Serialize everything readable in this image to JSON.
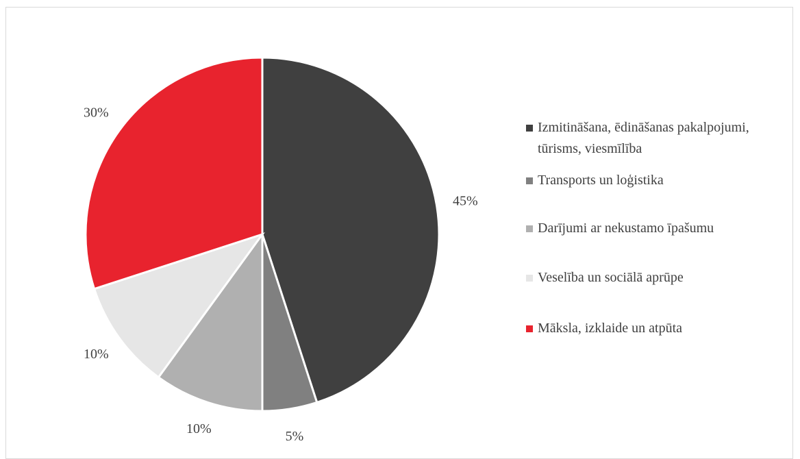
{
  "chart_data": {
    "type": "pie",
    "categories": [
      "Izmitināšana, ēdināšanas pakalpojumi, tūrisms, viesmīlība",
      "Transports un loģistika",
      "Darījumi ar nekustamo īpašumu",
      "Veselība un sociālā aprūpe",
      "Māksla, izklaide un atpūta"
    ],
    "values": [
      45,
      5,
      10,
      10,
      30
    ],
    "value_labels": [
      "45%",
      "5%",
      "10%",
      "10%",
      "30%"
    ],
    "colors": [
      "#404040",
      "#808080",
      "#b0b0b0",
      "#e6e6e6",
      "#e8232e"
    ],
    "legend": "right"
  }
}
